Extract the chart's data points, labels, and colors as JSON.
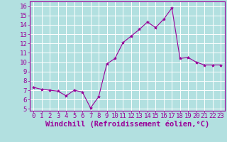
{
  "x": [
    0,
    1,
    2,
    3,
    4,
    5,
    6,
    7,
    8,
    9,
    10,
    11,
    12,
    13,
    14,
    15,
    16,
    17,
    18,
    19,
    20,
    21,
    22,
    23
  ],
  "y": [
    7.3,
    7.1,
    7.0,
    6.9,
    6.4,
    7.0,
    6.8,
    5.1,
    6.3,
    9.8,
    10.4,
    12.1,
    12.8,
    13.5,
    14.3,
    13.7,
    14.6,
    15.8,
    10.4,
    10.5,
    10.0,
    9.7,
    9.7,
    9.7
  ],
  "line_color": "#990099",
  "marker": "*",
  "marker_size": 3,
  "bg_color": "#b2e0e0",
  "grid_color": "#ffffff",
  "xlabel": "Windchill (Refroidissement éolien,°C)",
  "ylabel": "",
  "xlim": [
    -0.5,
    23.5
  ],
  "ylim": [
    4.8,
    16.5
  ],
  "yticks": [
    5,
    6,
    7,
    8,
    9,
    10,
    11,
    12,
    13,
    14,
    15,
    16
  ],
  "xticks": [
    0,
    1,
    2,
    3,
    4,
    5,
    6,
    7,
    8,
    9,
    10,
    11,
    12,
    13,
    14,
    15,
    16,
    17,
    18,
    19,
    20,
    21,
    22,
    23
  ],
  "tick_color": "#990099",
  "label_color": "#990099",
  "spine_color": "#990099",
  "font_size": 6.5,
  "xlabel_fontsize": 7.5
}
